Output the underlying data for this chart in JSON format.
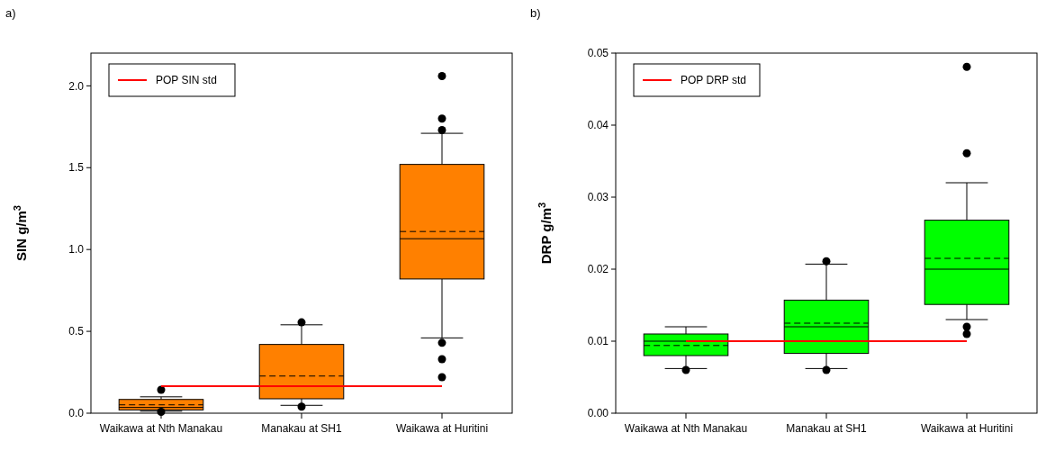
{
  "chart_data": [
    {
      "type": "box",
      "categories": [
        "Waikawa at Nth Manakau",
        "Manakau at SH1",
        "Waikawa at Huritini"
      ],
      "ylabel": "SIN g/m$^{3}$",
      "annotations": [
        "a)"
      ],
      "ylim": [
        0,
        2.2
      ],
      "yticks": [
        {
          "value": 0,
          "label": "0.0"
        },
        0.5,
        {
          "value": 1,
          "label": "1.0"
        },
        1.5,
        {
          "value": 2,
          "label": "2.0"
        }
      ],
      "series": [
        {
          "color": "#ff8000",
          "boxes": [
            {
              "low": 0.012,
              "q1": 0.02,
              "median": 0.035,
              "q3": 0.084,
              "high": 0.1,
              "mean": 0.051,
              "outliers": [
                0.143,
                0.008
              ]
            },
            {
              "low": 0.048,
              "q1": 0.088,
              "median": 0.167,
              "q3": 0.42,
              "high": 0.54,
              "mean": 0.227,
              "outliers": [
                0.555,
                0.04
              ]
            },
            {
              "low": 0.46,
              "q1": 0.82,
              "median": 1.066,
              "q3": 1.52,
              "high": 1.71,
              "mean": 1.11,
              "outliers": [
                2.06,
                1.8,
                1.73,
                0.43,
                0.33,
                0.22
              ]
            }
          ]
        }
      ],
      "ref_lines": [
        {
          "axis": "y",
          "value": 0.165,
          "label": "POP SIN std",
          "color": "#ff0000"
        }
      ],
      "legend": "top left"
    },
    {
      "type": "box",
      "categories": [
        "Waikawa at Nth Manakau",
        "Manakau at SH1",
        "Waikawa at Huritini"
      ],
      "ylabel": "DRP g/m$^{3}$",
      "annotations": [
        "b)"
      ],
      "ylim": [
        0,
        0.05
      ],
      "yticks": [
        {
          "value": 0,
          "label": "0.00"
        },
        {
          "value": 0.01,
          "label": "0.01"
        },
        {
          "value": 0.02,
          "label": "0.02"
        },
        {
          "value": 0.03,
          "label": "0.03"
        },
        {
          "value": 0.04,
          "label": "0.04"
        },
        {
          "value": 0.05,
          "label": "0.05"
        }
      ],
      "series": [
        {
          "color": "#00ff00",
          "boxes": [
            {
              "low": 0.0062,
              "q1": 0.008,
              "median": 0.01,
              "q3": 0.011,
              "high": 0.012,
              "mean": 0.0094,
              "outliers": [
                0.006
              ]
            },
            {
              "low": 0.0062,
              "q1": 0.0083,
              "median": 0.012,
              "q3": 0.0157,
              "high": 0.0207,
              "mean": 0.0125,
              "outliers": [
                0.0211,
                0.006
              ]
            },
            {
              "low": 0.013,
              "q1": 0.0151,
              "median": 0.02,
              "q3": 0.0268,
              "high": 0.032,
              "mean": 0.0215,
              "outliers": [
                0.0481,
                0.0361,
                0.012,
                0.011
              ]
            }
          ]
        }
      ],
      "ref_lines": [
        {
          "axis": "y",
          "value": 0.01,
          "label": "POP DRP std",
          "color": "#ff0000"
        }
      ],
      "legend": "top left"
    }
  ]
}
